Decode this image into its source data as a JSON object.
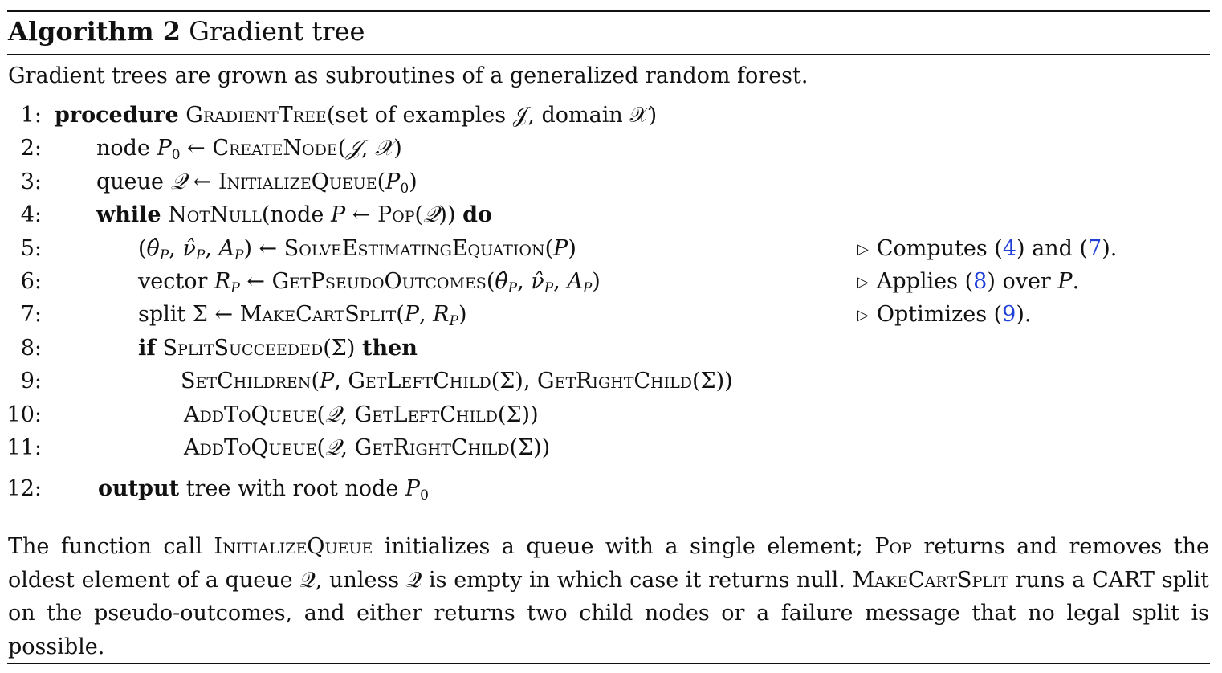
{
  "header": {
    "label": "Algorithm 2",
    "name": "Gradient tree"
  },
  "caption": "Gradient trees are grown as subroutines of a generalized random forest.",
  "lines": [
    {
      "num": "1:"
    },
    {
      "num": "2:"
    },
    {
      "num": "3:"
    },
    {
      "num": "4:"
    },
    {
      "num": "5:"
    },
    {
      "num": "6:"
    },
    {
      "num": "7:"
    },
    {
      "num": "8:"
    },
    {
      "num": "9:"
    },
    {
      "num": "10:"
    },
    {
      "num": "11:"
    },
    {
      "num": "12:"
    }
  ],
  "keywords": {
    "procedure": "procedure",
    "while": "while",
    "do": "do",
    "if": "if",
    "then": "then",
    "output": "output"
  },
  "functions": {
    "gradient_tree": "GradientTree",
    "create_node": "CreateNode",
    "initialize_queue": "InitializeQueue",
    "not_null": "NotNull",
    "pop": "Pop",
    "solve": "SolveEstimatingEquation",
    "get_pseudo": "GetPseudoOutcomes",
    "make_cart_split": "MakeCartSplit",
    "split_succeeded": "SplitSucceeded",
    "set_children": "SetChildren",
    "get_left_child": "GetLeftChild",
    "get_right_child": "GetRightChild",
    "add_to_queue": "AddToQueue"
  },
  "text": {
    "l1_args": "set of examples 𝒥, domain 𝒳",
    "node": "node",
    "queue": "queue",
    "vector": "vector",
    "split": "split",
    "l12_rest": "tree with root node"
  },
  "comments": {
    "c5_a": "Computes (",
    "c5_r1": "4",
    "c5_b": ") and (",
    "c5_r2": "7",
    "c5_c": ").",
    "c6_a": "Applies (",
    "c6_r": "8",
    "c6_b": ") over ",
    "c7_a": "Optimizes (",
    "c7_r": "9",
    "c7_b": ")."
  },
  "paragraph": {
    "s1_a": "The function call ",
    "s1_fn": "InitializeQueue",
    "s1_b": " initializes a queue with a single element; ",
    "s1_fn2": "Pop",
    "s1_c": " returns and removes the oldest element of a queue 𝒬, unless 𝒬 is empty in which case it returns null. ",
    "s2_fn": "MakeCartSplit",
    "s2_a": " runs a CART split on the pseudo-outcomes, and either returns two child nodes or a failure message that no legal split is possible."
  }
}
